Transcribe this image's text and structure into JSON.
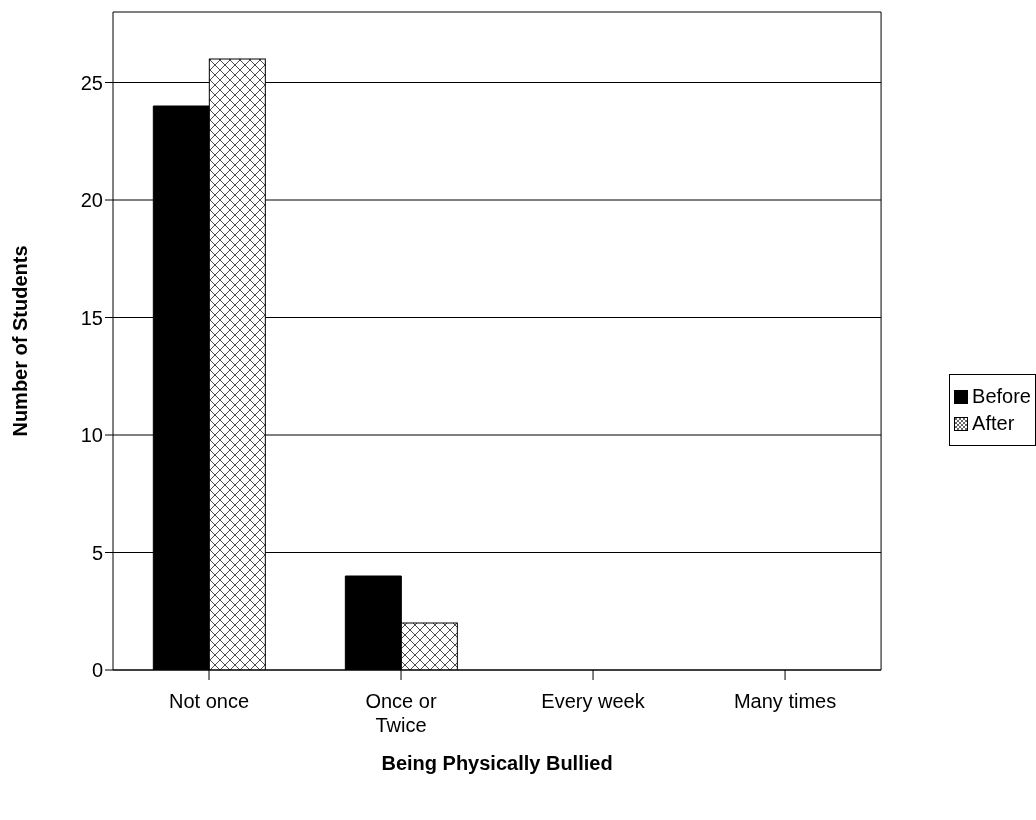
{
  "chart_data": {
    "type": "bar",
    "xlabel": "Being Physically Bullied",
    "ylabel": "Number of Students",
    "categories": [
      "Not once",
      "Once or Twice",
      "Every week",
      "Many times"
    ],
    "series": [
      {
        "name": "Before",
        "color": "#000000",
        "values": [
          24,
          4,
          0,
          0
        ]
      },
      {
        "name": "After",
        "color": "#ffffff",
        "values": [
          26,
          2,
          0,
          0
        ]
      }
    ],
    "ylim": [
      0,
      28
    ],
    "yticks": [
      0,
      5,
      10,
      15,
      20,
      25
    ],
    "grid": "y",
    "legend": "right"
  }
}
